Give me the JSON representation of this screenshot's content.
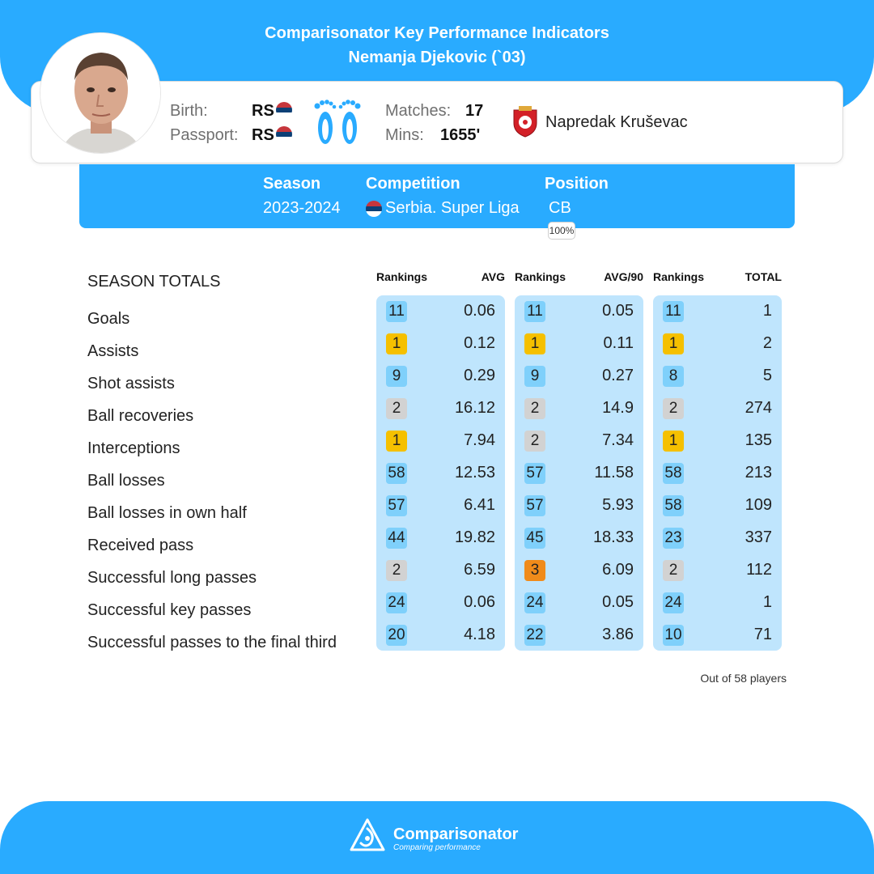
{
  "header": {
    "title": "Comparisonator Key Performance Indicators",
    "player": "Nemanja Djekovic (`03)"
  },
  "player_info": {
    "birth_label": "Birth:",
    "birth_value": "RS",
    "passport_label": "Passport:",
    "passport_value": "RS",
    "matches_label": "Matches:",
    "matches_value": "17",
    "mins_label": "Mins:",
    "mins_value": "1655'",
    "club": "Napredak Kruševac",
    "foot_icon": "feet-icon",
    "flag_icon": "serbia-flag-icon",
    "club_icon": "napredak-crest-icon"
  },
  "season": {
    "season_label": "Season",
    "season_value": "2023-2024",
    "competition_label": "Competition",
    "competition_value": "Serbia. Super Liga",
    "position_label": "Position",
    "position_value": "CB",
    "position_pct": "100%"
  },
  "table": {
    "section_title": "SEASON TOTALS",
    "columns": [
      "Rankings",
      "AVG",
      "Rankings",
      "AVG/90",
      "Rankings",
      "TOTAL"
    ],
    "rows": [
      {
        "label": "Goals",
        "r1": "11",
        "c1": "blue",
        "avg": "0.06",
        "r2": "11",
        "c2": "blue",
        "avg90": "0.05",
        "r3": "11",
        "c3": "blue",
        "total": "1"
      },
      {
        "label": "Assists",
        "r1": "1",
        "c1": "gold",
        "avg": "0.12",
        "r2": "1",
        "c2": "gold",
        "avg90": "0.11",
        "r3": "1",
        "c3": "gold",
        "total": "2"
      },
      {
        "label": "Shot assists",
        "r1": "9",
        "c1": "blue",
        "avg": "0.29",
        "r2": "9",
        "c2": "blue",
        "avg90": "0.27",
        "r3": "8",
        "c3": "blue",
        "total": "5"
      },
      {
        "label": "Ball recoveries",
        "r1": "2",
        "c1": "grey",
        "avg": "16.12",
        "r2": "2",
        "c2": "grey",
        "avg90": "14.9",
        "r3": "2",
        "c3": "grey",
        "total": "274"
      },
      {
        "label": "Interceptions",
        "r1": "1",
        "c1": "gold",
        "avg": "7.94",
        "r2": "2",
        "c2": "grey",
        "avg90": "7.34",
        "r3": "1",
        "c3": "gold",
        "total": "135"
      },
      {
        "label": "Ball losses",
        "r1": "58",
        "c1": "blue",
        "avg": "12.53",
        "r2": "57",
        "c2": "blue",
        "avg90": "11.58",
        "r3": "58",
        "c3": "blue",
        "total": "213"
      },
      {
        "label": "Ball losses in own half",
        "r1": "57",
        "c1": "blue",
        "avg": "6.41",
        "r2": "57",
        "c2": "blue",
        "avg90": "5.93",
        "r3": "58",
        "c3": "blue",
        "total": "109"
      },
      {
        "label": "Received pass",
        "r1": "44",
        "c1": "blue",
        "avg": "19.82",
        "r2": "45",
        "c2": "blue",
        "avg90": "18.33",
        "r3": "23",
        "c3": "blue",
        "total": "337"
      },
      {
        "label": "Successful long passes",
        "r1": "2",
        "c1": "grey",
        "avg": "6.59",
        "r2": "3",
        "c2": "orange",
        "avg90": "6.09",
        "r3": "2",
        "c3": "grey",
        "total": "112"
      },
      {
        "label": "Successful key passes",
        "r1": "24",
        "c1": "blue",
        "avg": "0.06",
        "r2": "24",
        "c2": "blue",
        "avg90": "0.05",
        "r3": "24",
        "c3": "blue",
        "total": "1"
      },
      {
        "label": "Successful passes to the final third",
        "r1": "20",
        "c1": "blue",
        "avg": "4.18",
        "r2": "22",
        "c2": "blue",
        "avg90": "3.86",
        "r3": "10",
        "c3": "blue",
        "total": "71"
      }
    ],
    "footnote": "Out of 58 players"
  },
  "colors": {
    "brand_blue": "#29abff",
    "panel_blue": "#bfe5fd",
    "rank_blue": "#7fd0fb",
    "rank_gold": "#f5c000",
    "rank_silver": "#d2d2d2",
    "rank_bronze": "#f08b1a"
  },
  "footer": {
    "brand": "Comparisonator",
    "tagline": "Comparing performance",
    "logo_icon": "comparisonator-logo-icon"
  }
}
